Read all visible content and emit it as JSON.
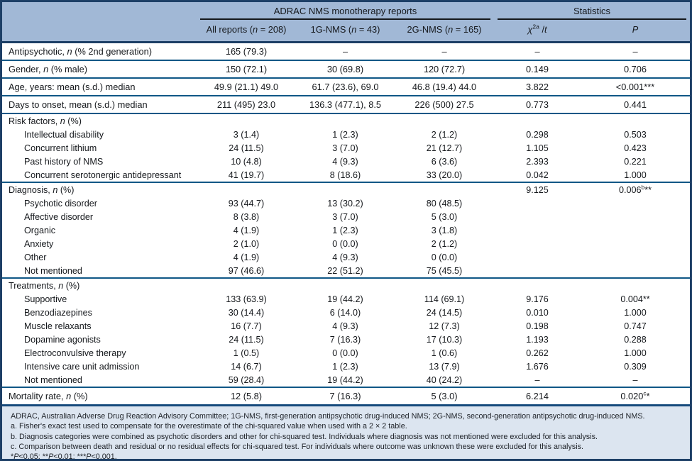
{
  "colors": {
    "header_bg": "#a1b8d6",
    "footer_bg": "#dce5f0",
    "outer_border": "#1d3f66",
    "row_separator": "#0f5786"
  },
  "table": {
    "group_headers": [
      "ADRAC NMS monotherapy reports",
      "Statistics"
    ],
    "columns": [
      "All reports (~n~ = 208)",
      "1G-NMS (~n~ = 43)",
      "2G-NMS (~n~ = 165)",
      "~χ~^2a^ /~t~",
      "~P~"
    ],
    "rows": [
      {
        "label": "Antipsychotic, ~n~ (% 2nd generation)",
        "kind": "main",
        "line": false,
        "indent": false,
        "cells": [
          "165 (79.3)",
          "–",
          "–",
          "–",
          "–"
        ]
      },
      {
        "label": "Gender, ~n~ (% male)",
        "kind": "main",
        "line": true,
        "indent": false,
        "cells": [
          "150 (72.1)",
          "30 (69.8)",
          "120 (72.7)",
          "0.149",
          "0.706"
        ]
      },
      {
        "label": "Age, years: mean (s.d.) median",
        "kind": "main",
        "line": true,
        "indent": false,
        "cells": [
          "49.9 (21.1) 49.0",
          "61.7 (23.6), 69.0",
          "46.8 (19.4) 44.0",
          "3.822",
          "<0.001***"
        ]
      },
      {
        "label": "Days to onset, mean (s.d.) median",
        "kind": "main",
        "line": true,
        "indent": false,
        "cells": [
          "211 (495) 23.0",
          "136.3 (477.1), 8.5",
          "226 (500) 27.5",
          "0.773",
          "0.441"
        ]
      },
      {
        "label": "Risk factors, ~n~ (%)",
        "kind": "sect",
        "line": true,
        "indent": false,
        "cells": [
          "",
          "",
          "",
          "",
          ""
        ]
      },
      {
        "label": "Intellectual disability",
        "kind": "sub",
        "line": false,
        "indent": true,
        "cells": [
          "3 (1.4)",
          "1 (2.3)",
          "2 (1.2)",
          "0.298",
          "0.503"
        ]
      },
      {
        "label": "Concurrent lithium",
        "kind": "sub",
        "line": false,
        "indent": true,
        "cells": [
          "24 (11.5)",
          "3 (7.0)",
          "21 (12.7)",
          "1.105",
          "0.423"
        ]
      },
      {
        "label": "Past history of NMS",
        "kind": "sub",
        "line": false,
        "indent": true,
        "cells": [
          "10 (4.8)",
          "4 (9.3)",
          "6 (3.6)",
          "2.393",
          "0.221"
        ]
      },
      {
        "label": "Concurrent serotonergic antidepressant",
        "kind": "sub",
        "line": false,
        "indent": true,
        "cells": [
          "41 (19.7)",
          "8 (18.6)",
          "33 (20.0)",
          "0.042",
          "1.000"
        ]
      },
      {
        "label": "Diagnosis, ~n~ (%)",
        "kind": "sect",
        "line": true,
        "indent": false,
        "cells": [
          "",
          "",
          "",
          "9.125",
          "0.006^b^**"
        ]
      },
      {
        "label": "Psychotic disorder",
        "kind": "sub",
        "line": false,
        "indent": true,
        "cells": [
          "93 (44.7)",
          "13 (30.2)",
          "80 (48.5)",
          "",
          ""
        ]
      },
      {
        "label": "Affective disorder",
        "kind": "sub",
        "line": false,
        "indent": true,
        "cells": [
          "8 (3.8)",
          "3 (7.0)",
          "5 (3.0)",
          "",
          ""
        ]
      },
      {
        "label": "Organic",
        "kind": "sub",
        "line": false,
        "indent": true,
        "cells": [
          "4 (1.9)",
          "1 (2.3)",
          "3 (1.8)",
          "",
          ""
        ]
      },
      {
        "label": "Anxiety",
        "kind": "sub",
        "line": false,
        "indent": true,
        "cells": [
          "2 (1.0)",
          "0 (0.0)",
          "2 (1.2)",
          "",
          ""
        ]
      },
      {
        "label": "Other",
        "kind": "sub",
        "line": false,
        "indent": true,
        "cells": [
          "4 (1.9)",
          "4 (9.3)",
          "0 (0.0)",
          "",
          ""
        ]
      },
      {
        "label": "Not mentioned",
        "kind": "sub",
        "line": false,
        "indent": true,
        "cells": [
          "97 (46.6)",
          "22 (51.2)",
          "75 (45.5)",
          "",
          ""
        ]
      },
      {
        "label": "Treatments, ~n~ (%)",
        "kind": "sect",
        "line": true,
        "indent": false,
        "cells": [
          "",
          "",
          "",
          "",
          ""
        ]
      },
      {
        "label": "Supportive",
        "kind": "sub",
        "line": false,
        "indent": true,
        "cells": [
          "133 (63.9)",
          "19 (44.2)",
          "114 (69.1)",
          "9.176",
          "0.004**"
        ]
      },
      {
        "label": "Benzodiazepines",
        "kind": "sub",
        "line": false,
        "indent": true,
        "cells": [
          "30 (14.4)",
          "6 (14.0)",
          "24 (14.5)",
          "0.010",
          "1.000"
        ]
      },
      {
        "label": "Muscle relaxants",
        "kind": "sub",
        "line": false,
        "indent": true,
        "cells": [
          "16 (7.7)",
          "4 (9.3)",
          "12 (7.3)",
          "0.198",
          "0.747"
        ]
      },
      {
        "label": "Dopamine agonists",
        "kind": "sub",
        "line": false,
        "indent": true,
        "cells": [
          "24 (11.5)",
          "7 (16.3)",
          "17 (10.3)",
          "1.193",
          "0.288"
        ]
      },
      {
        "label": "Electroconvulsive therapy",
        "kind": "sub",
        "line": false,
        "indent": true,
        "cells": [
          "1 (0.5)",
          "0 (0.0)",
          "1 (0.6)",
          "0.262",
          "1.000"
        ]
      },
      {
        "label": "Intensive care unit admission",
        "kind": "sub",
        "line": false,
        "indent": true,
        "cells": [
          "14 (6.7)",
          "1 (2.3)",
          "13 (7.9)",
          "1.676",
          "0.309"
        ]
      },
      {
        "label": "Not mentioned",
        "kind": "sub",
        "line": false,
        "indent": true,
        "cells": [
          "59 (28.4)",
          "19 (44.2)",
          "40 (24.2)",
          "–",
          "–"
        ]
      },
      {
        "label": "Mortality rate, ~n~ (%)",
        "kind": "main",
        "line": true,
        "indent": false,
        "cells": [
          "12 (5.8)",
          "7 (16.3)",
          "5 (3.0)",
          "6.214",
          "0.020^c^*"
        ]
      }
    ]
  },
  "footnotes": [
    "ADRAC, Australian Adverse Drug Reaction Advisory Committee; 1G-NMS, first-generation antipsychotic drug-induced NMS; 2G-NMS, second-generation antipsychotic drug-induced NMS.",
    "a. Fisher's exact test used to compensate for the overestimate of the chi-squared value when used with a 2 × 2 table.",
    "b. Diagnosis categories were combined as psychotic disorders and other for chi-squared test. Individuals where diagnosis was not mentioned were excluded for this analysis.",
    "c. Comparison between death and residual or no residual effects for chi-squared test. For individuals where outcome was unknown these were excluded for this analysis.",
    "*~P~<0.05; **~P~<0.01; ***~P~<0.001."
  ]
}
